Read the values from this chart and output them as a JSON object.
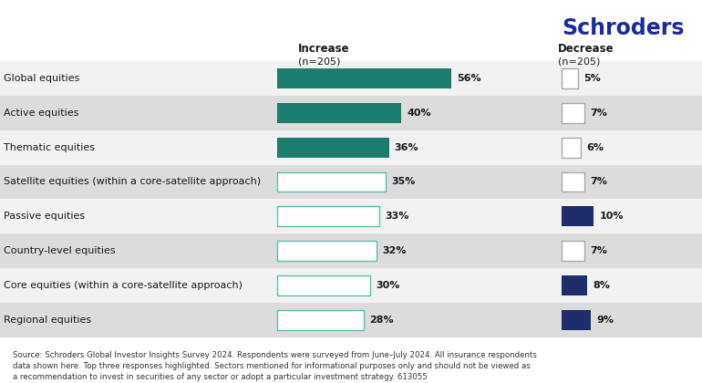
{
  "categories": [
    "Global equities",
    "Active equities",
    "Thematic equities",
    "Satellite equities (within a core-satellite approach)",
    "Passive equities",
    "Country-level equities",
    "Core equities (within a core-satellite approach)",
    "Regional equities"
  ],
  "increase_values": [
    56,
    40,
    36,
    35,
    33,
    32,
    30,
    28
  ],
  "decrease_values": [
    5,
    7,
    6,
    7,
    10,
    7,
    8,
    9
  ],
  "increase_highlighted": [
    true,
    true,
    true,
    false,
    false,
    false,
    false,
    false
  ],
  "decrease_highlighted": [
    false,
    false,
    false,
    false,
    true,
    false,
    true,
    true
  ],
  "increase_color_highlight": "#1a7d6e",
  "increase_color_normal_fill": "#e8e8e8",
  "increase_color_normal_border": "#5bbfb0",
  "decrease_color_highlight": "#1e2d6b",
  "decrease_color_normal_fill": "#e8e8e8",
  "decrease_color_normal_border": "#aaaaaa",
  "decrease_color_normal_fill_white": "#ffffff",
  "row_bg_alt": "#dcdcdc",
  "row_bg_norm": "#f0f0f0",
  "header_increase": "Increase",
  "header_decrease": "Decrease",
  "header_n": "(n=205)",
  "schroders_color": "#1a2b9e",
  "footnote": "Source: Schroders Global Investor Insights Survey 2024. Respondents were surveyed from June–July 2024. All insurance respondents\ndata shown here. Top three responses highlighted. Sectors mentioned for informational purposes only and should not be viewed as\na recommendation to invest in securities of any sector or adopt a particular investment strategy. 613055"
}
